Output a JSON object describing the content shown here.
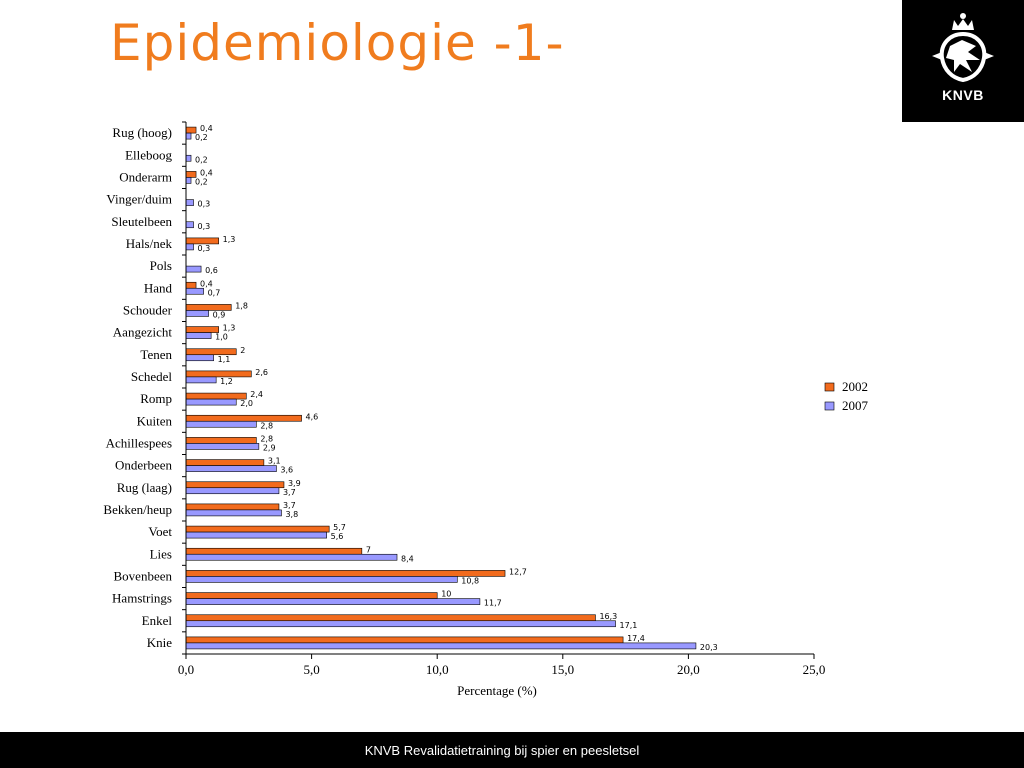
{
  "slide": {
    "title": "Epidemiologie -1-",
    "logo_text": "KNVB",
    "footer": "KNVB Revalidatietraining bij spier en peesletsel"
  },
  "chart_data": {
    "type": "bar",
    "orientation": "horizontal",
    "title": "",
    "xlabel": "Percentage (%)",
    "ylabel": "",
    "xlim": [
      0,
      25
    ],
    "x_ticks": [
      "0,0",
      "5,0",
      "10,0",
      "15,0",
      "20,0",
      "25,0"
    ],
    "legend_position": "right",
    "grid": false,
    "categories": [
      "Rug (hoog)",
      "Elleboog",
      "Onderarm",
      "Vinger/duim",
      "Sleutelbeen",
      "Hals/nek",
      "Pols",
      "Hand",
      "Schouder",
      "Aangezicht",
      "Tenen",
      "Schedel",
      "Romp",
      "Kuiten",
      "Achillespees",
      "Onderbeen",
      "Rug (laag)",
      "Bekken/heup",
      "Voet",
      "Lies",
      "Bovenbeen",
      "Hamstrings",
      "Enkel",
      "Knie"
    ],
    "series": [
      {
        "name": "2002",
        "color": "#f26b1d",
        "values": [
          0.4,
          null,
          0.4,
          null,
          null,
          1.3,
          null,
          0.4,
          1.8,
          1.3,
          2,
          2.6,
          2.4,
          4.6,
          2.8,
          3.1,
          3.9,
          3.7,
          5.7,
          7,
          12.7,
          10,
          16.3,
          17.4
        ],
        "labels": [
          "0,4",
          "",
          "0,4",
          "",
          "",
          "1,3",
          "",
          "0,4",
          "1,8",
          "1,3",
          "2",
          "2,6",
          "2,4",
          "4,6",
          "2,8",
          "3,1",
          "3,9",
          "3,7",
          "5,7",
          "7",
          "12,7",
          "10",
          "16,3",
          "17,4"
        ]
      },
      {
        "name": "2007",
        "color": "#9999ff",
        "values": [
          0.2,
          0.2,
          0.2,
          0.3,
          0.3,
          0.3,
          0.6,
          0.7,
          0.9,
          1.0,
          1.1,
          1.2,
          2.0,
          2.8,
          2.9,
          3.6,
          3.7,
          3.8,
          5.6,
          8.4,
          10.8,
          11.7,
          17.1,
          20.3
        ],
        "labels": [
          "0,2",
          "0,2",
          "0,2",
          "0,3",
          "0,3",
          "0,3",
          "0,6",
          "0,7",
          "0,9",
          "1,0",
          "1,1",
          "1,2",
          "2,0",
          "2,8",
          "2,9",
          "3,6",
          "3,7",
          "3,8",
          "5,6",
          "8,4",
          "10,8",
          "11,7",
          "17,1",
          "20,3"
        ]
      }
    ]
  }
}
